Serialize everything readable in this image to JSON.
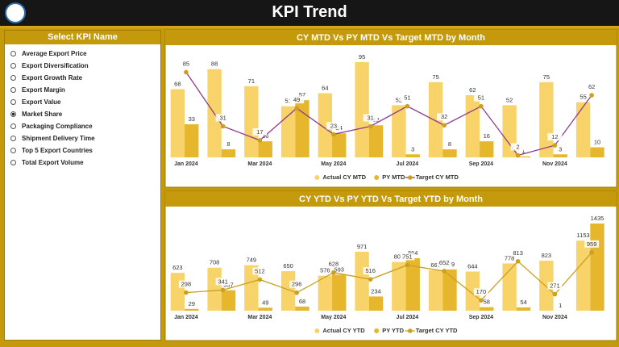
{
  "header": {
    "title": "KPI Trend"
  },
  "slicer": {
    "title": "Select KPI Name",
    "items": [
      "Average Export Price",
      "Export Diversification",
      "Export Growth Rate",
      "Export Margin",
      "Export Value",
      "Market Share",
      "Packaging Compliance",
      "Shipment Delivery Time",
      "Top 5 Export Countries",
      "Total Export Volume"
    ],
    "selected": 5
  },
  "chart_data": [
    {
      "type": "combo",
      "title": "CY MTD Vs PY MTD Vs Target MTD by Month",
      "categories": [
        "Jan 2024",
        null,
        "Mar 2024",
        null,
        "May 2024",
        null,
        "Jul 2024",
        null,
        "Sep 2024",
        null,
        "Nov 2024",
        null
      ],
      "series": [
        {
          "name": "Actual CY MTD",
          "mark": "bar",
          "color": "#f8d36a",
          "values": [
            68,
            88,
            71,
            51,
            64,
            95,
            52,
            75,
            62,
            52,
            75,
            55
          ]
        },
        {
          "name": "PY MTD",
          "mark": "bar",
          "color": "#e6b62c",
          "values": [
            33,
            8,
            16,
            57,
            24,
            32,
            3,
            8,
            16,
            1,
            3,
            10
          ]
        },
        {
          "name": "Target CY MTD",
          "mark": "line",
          "color": "#8e3b8c",
          "marker_color": "#c9a020",
          "values": [
            85,
            31,
            17,
            49,
            23,
            31,
            51,
            32,
            51,
            2,
            12,
            62
          ]
        }
      ]
    },
    {
      "type": "combo",
      "title": "CY YTD Vs PY YTD Vs Target YTD by Month",
      "categories": [
        "Jan 2024",
        null,
        "Mar 2024",
        null,
        "May 2024",
        null,
        "Jul 2024",
        null,
        "Sep 2024",
        null,
        "Nov 2024",
        null
      ],
      "series": [
        {
          "name": "Actual CY YTD",
          "mark": "bar",
          "color": "#f8d36a",
          "values": [
            623,
            708,
            749,
            650,
            576,
            971,
            801,
            667,
            644,
            778,
            823,
            1153
          ]
        },
        {
          "name": "PY YTD",
          "mark": "bar",
          "color": "#e6b62c",
          "values": [
            29,
            337,
            49,
            68,
            593,
            234,
            864,
            679,
            58,
            54,
            1,
            1435
          ]
        },
        {
          "name": "Target CY YTD",
          "mark": "line",
          "color": "#c9a020",
          "marker_color": "#c9a020",
          "values": [
            298,
            341,
            512,
            296,
            628,
            516,
            751,
            652,
            170,
            813,
            271,
            959
          ]
        }
      ]
    }
  ]
}
